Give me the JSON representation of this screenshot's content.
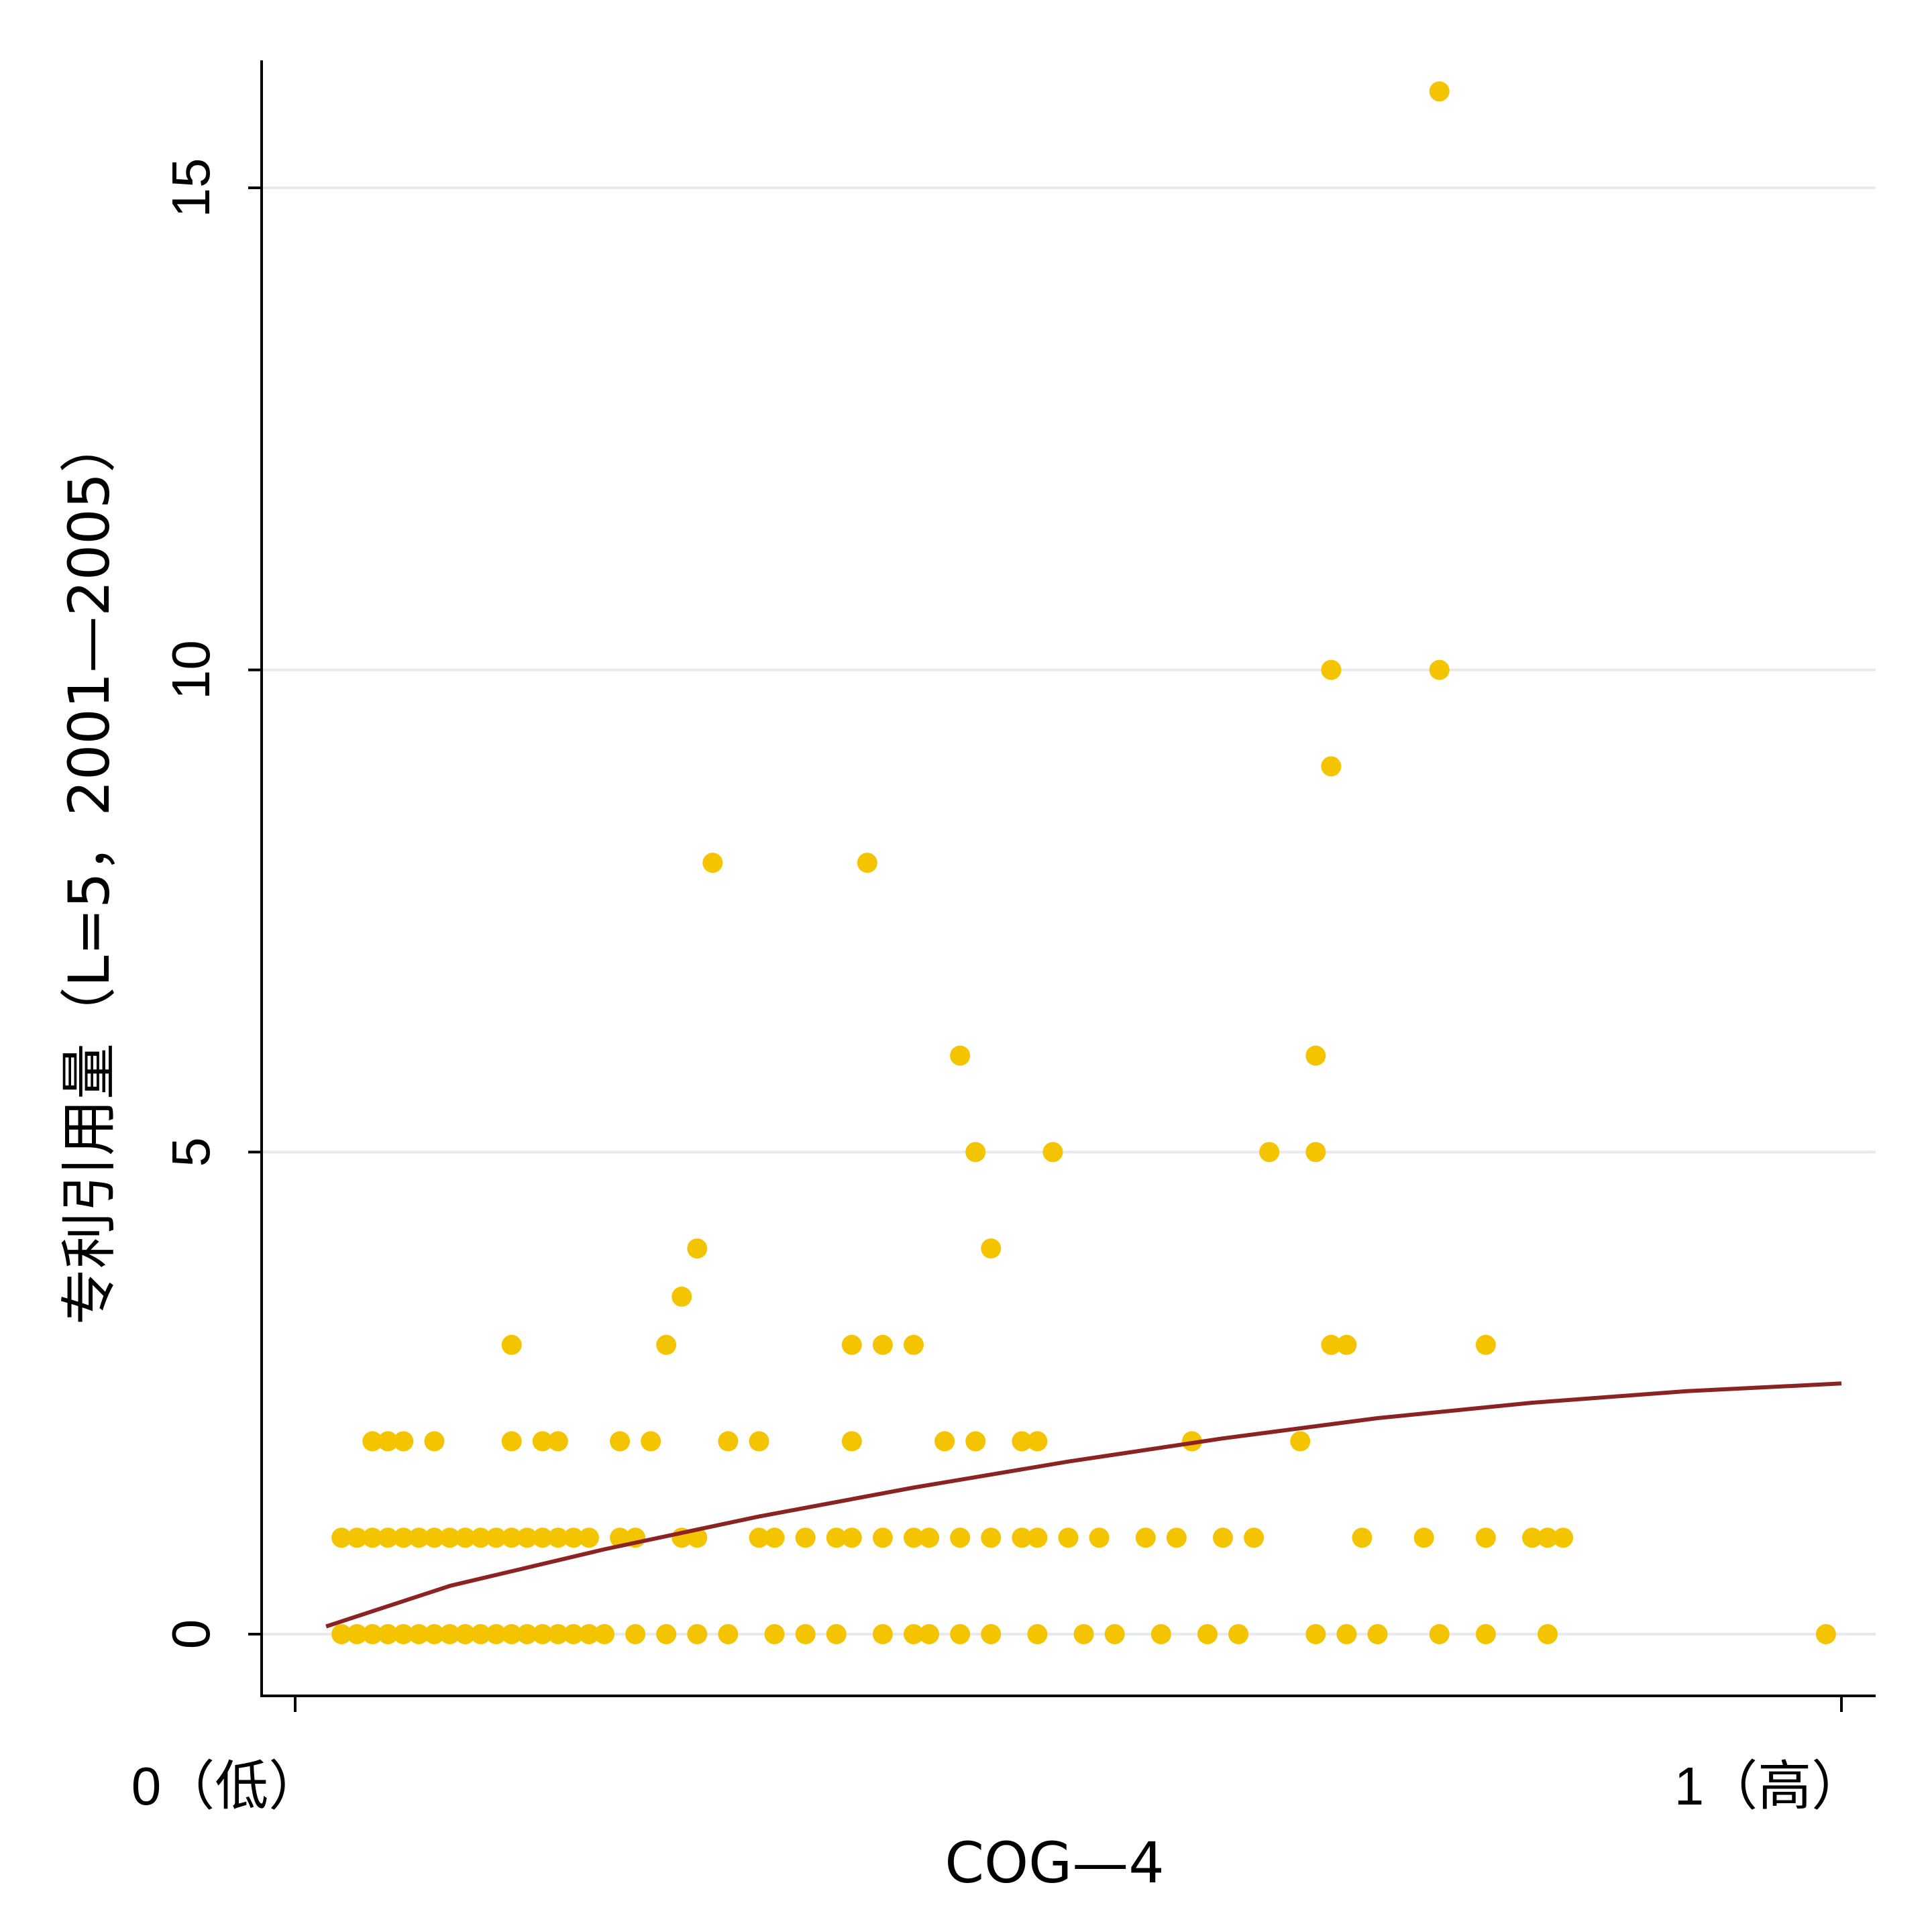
{
  "chart_data": {
    "type": "scatter",
    "xlabel": "COG—4",
    "ylabel": "专利引用量（L=5，2001—2005）",
    "xlim": [
      -0.02,
      1.02
    ],
    "ylim": [
      -0.65,
      16.6
    ],
    "grid": true,
    "x_ticks": [
      {
        "value": 0,
        "label": "0（低）"
      },
      {
        "value": 1,
        "label": "1（高）"
      }
    ],
    "y_ticks": [
      {
        "value": 0,
        "label": "0"
      },
      {
        "value": 5,
        "label": "5"
      },
      {
        "value": 10,
        "label": "10"
      },
      {
        "value": 15,
        "label": "15"
      }
    ],
    "colors": {
      "points": "#F5C400",
      "fit_line": "#8B2323",
      "grid": "#E6E9ED",
      "axis": "#000000"
    },
    "series": [
      {
        "values": [
          [
            0.03,
            0
          ],
          [
            0.04,
            0
          ],
          [
            0.05,
            0
          ],
          [
            0.06,
            0
          ],
          [
            0.07,
            0
          ],
          [
            0.08,
            0
          ],
          [
            0.09,
            0
          ],
          [
            0.1,
            0
          ],
          [
            0.11,
            0
          ],
          [
            0.12,
            0
          ],
          [
            0.13,
            0
          ],
          [
            0.14,
            0
          ],
          [
            0.15,
            0
          ],
          [
            0.16,
            0
          ],
          [
            0.17,
            0
          ],
          [
            0.18,
            0
          ],
          [
            0.19,
            0
          ],
          [
            0.2,
            0
          ],
          [
            0.22,
            0
          ],
          [
            0.24,
            0
          ],
          [
            0.26,
            0
          ],
          [
            0.28,
            0
          ],
          [
            0.31,
            0
          ],
          [
            0.33,
            0
          ],
          [
            0.35,
            0
          ],
          [
            0.38,
            0
          ],
          [
            0.4,
            0
          ],
          [
            0.41,
            0
          ],
          [
            0.43,
            0
          ],
          [
            0.45,
            0
          ],
          [
            0.48,
            0
          ],
          [
            0.51,
            0
          ],
          [
            0.53,
            0
          ],
          [
            0.56,
            0
          ],
          [
            0.59,
            0
          ],
          [
            0.61,
            0
          ],
          [
            0.66,
            0
          ],
          [
            0.68,
            0
          ],
          [
            0.7,
            0
          ],
          [
            0.74,
            0
          ],
          [
            0.77,
            0
          ],
          [
            0.81,
            0
          ],
          [
            0.99,
            0
          ],
          [
            0.03,
            1
          ],
          [
            0.04,
            1
          ],
          [
            0.05,
            1
          ],
          [
            0.06,
            1
          ],
          [
            0.07,
            1
          ],
          [
            0.08,
            1
          ],
          [
            0.09,
            1
          ],
          [
            0.1,
            1
          ],
          [
            0.11,
            1
          ],
          [
            0.12,
            1
          ],
          [
            0.13,
            1
          ],
          [
            0.14,
            1
          ],
          [
            0.15,
            1
          ],
          [
            0.16,
            1
          ],
          [
            0.17,
            1
          ],
          [
            0.18,
            1
          ],
          [
            0.19,
            1
          ],
          [
            0.21,
            1
          ],
          [
            0.22,
            1
          ],
          [
            0.25,
            1
          ],
          [
            0.26,
            1
          ],
          [
            0.3,
            1
          ],
          [
            0.31,
            1
          ],
          [
            0.33,
            1
          ],
          [
            0.35,
            1
          ],
          [
            0.36,
            1
          ],
          [
            0.38,
            1
          ],
          [
            0.4,
            1
          ],
          [
            0.41,
            1
          ],
          [
            0.43,
            1
          ],
          [
            0.45,
            1
          ],
          [
            0.47,
            1
          ],
          [
            0.48,
            1
          ],
          [
            0.5,
            1
          ],
          [
            0.52,
            1
          ],
          [
            0.55,
            1
          ],
          [
            0.57,
            1
          ],
          [
            0.6,
            1
          ],
          [
            0.62,
            1
          ],
          [
            0.69,
            1
          ],
          [
            0.73,
            1
          ],
          [
            0.77,
            1
          ],
          [
            0.8,
            1
          ],
          [
            0.81,
            1
          ],
          [
            0.82,
            1
          ],
          [
            0.05,
            2
          ],
          [
            0.06,
            2
          ],
          [
            0.07,
            2
          ],
          [
            0.09,
            2
          ],
          [
            0.14,
            2
          ],
          [
            0.16,
            2
          ],
          [
            0.17,
            2
          ],
          [
            0.21,
            2
          ],
          [
            0.23,
            2
          ],
          [
            0.28,
            2
          ],
          [
            0.3,
            2
          ],
          [
            0.36,
            2
          ],
          [
            0.42,
            2
          ],
          [
            0.44,
            2
          ],
          [
            0.47,
            2
          ],
          [
            0.48,
            2
          ],
          [
            0.58,
            2
          ],
          [
            0.65,
            2
          ],
          [
            0.14,
            3
          ],
          [
            0.24,
            3
          ],
          [
            0.36,
            3
          ],
          [
            0.38,
            3
          ],
          [
            0.4,
            3
          ],
          [
            0.67,
            3
          ],
          [
            0.68,
            3
          ],
          [
            0.77,
            3
          ],
          [
            0.26,
            4
          ],
          [
            0.45,
            4
          ],
          [
            0.25,
            3.5
          ],
          [
            0.44,
            5
          ],
          [
            0.49,
            5
          ],
          [
            0.63,
            5
          ],
          [
            0.66,
            5
          ],
          [
            0.43,
            6
          ],
          [
            0.66,
            6
          ],
          [
            0.27,
            8
          ],
          [
            0.37,
            8
          ],
          [
            0.67,
            9
          ],
          [
            0.67,
            10
          ],
          [
            0.74,
            10
          ],
          [
            0.74,
            16
          ]
        ]
      }
    ],
    "fit_line": {
      "x": [
        0.02,
        0.1,
        0.2,
        0.3,
        0.4,
        0.5,
        0.6,
        0.7,
        0.8,
        0.9,
        1.0
      ],
      "y": [
        0.08,
        0.5,
        0.88,
        1.22,
        1.52,
        1.79,
        2.03,
        2.24,
        2.4,
        2.52,
        2.6
      ]
    }
  }
}
